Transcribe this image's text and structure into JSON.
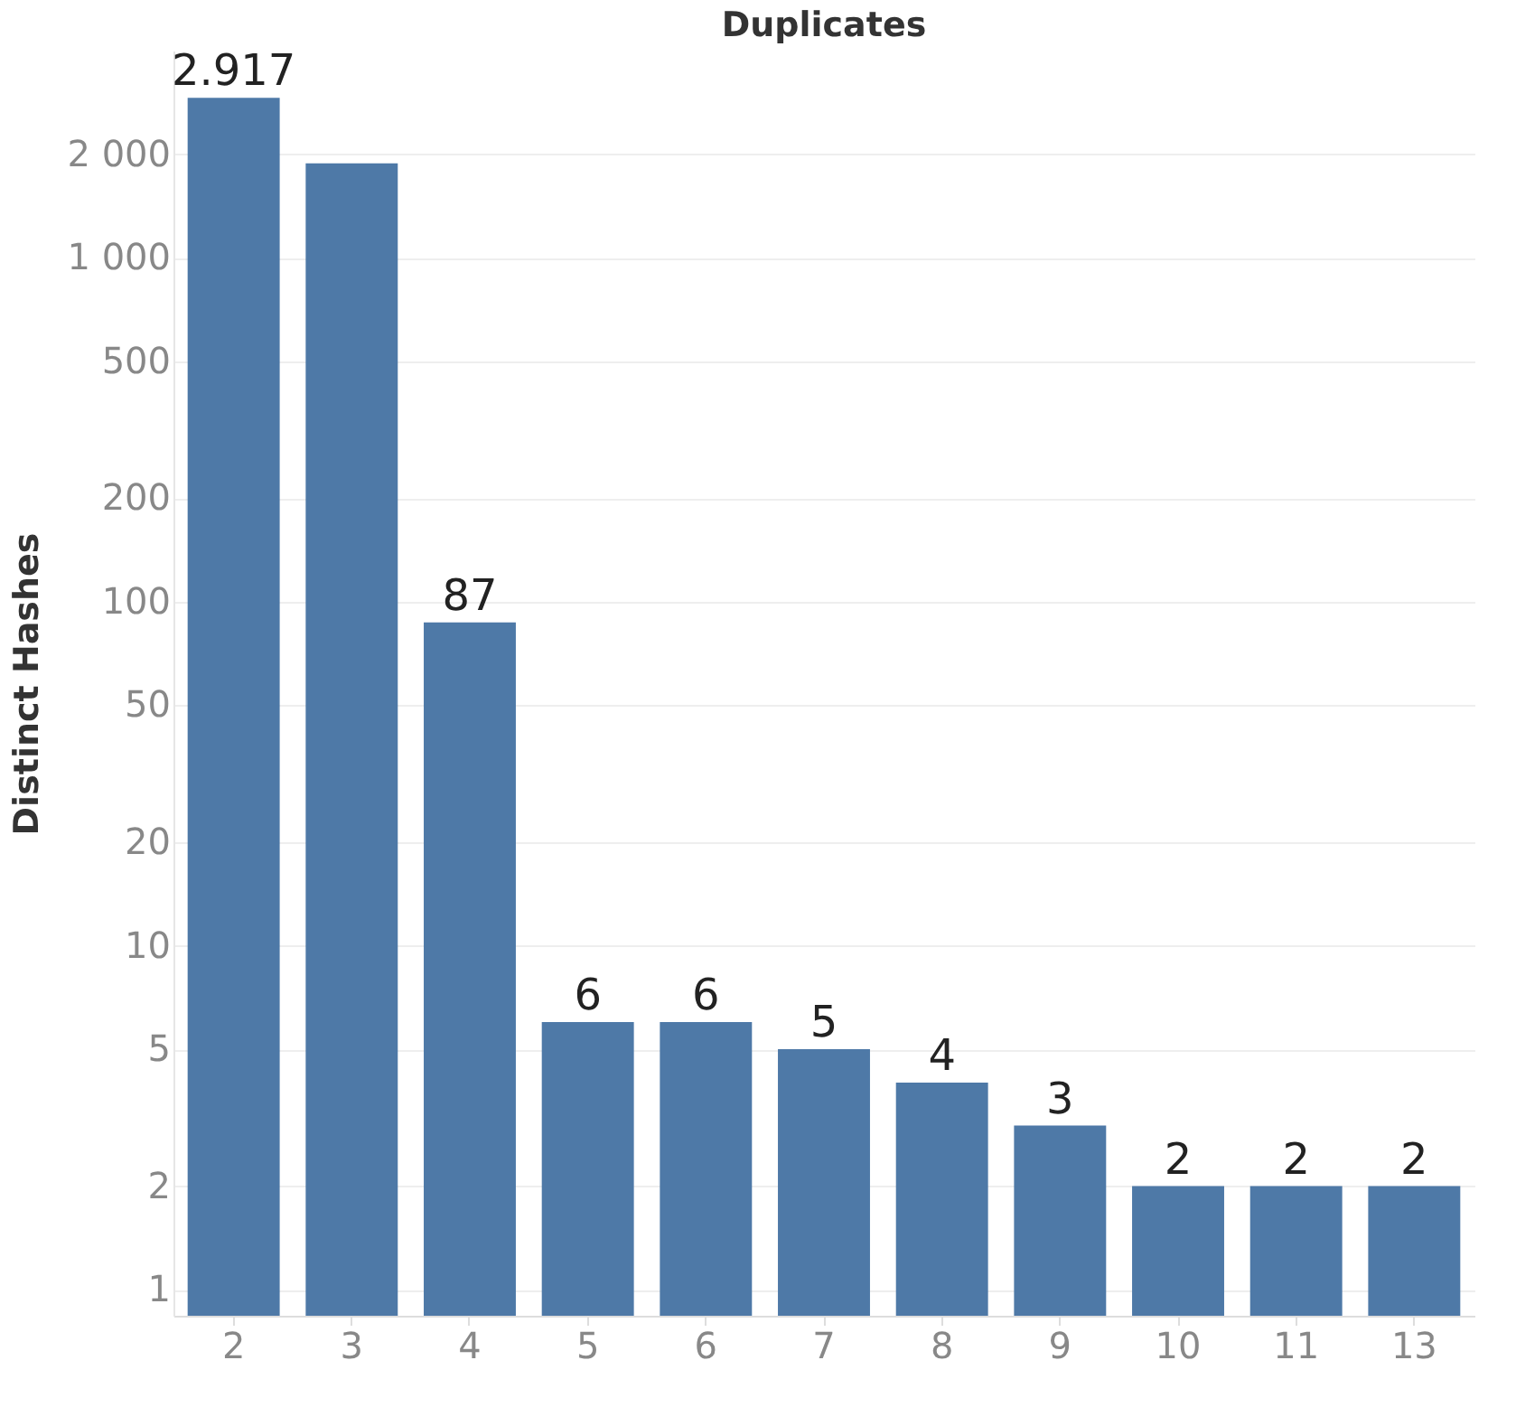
{
  "chart_data": {
    "type": "bar",
    "title": "Duplicates",
    "ylabel": "Distinct Hashes",
    "categories": [
      "2",
      "3",
      "4",
      "5",
      "6",
      "7",
      "8",
      "9",
      "10",
      "11",
      "13"
    ],
    "values": [
      2917,
      1880,
      87,
      6,
      6,
      5,
      4,
      3,
      2,
      2,
      2
    ],
    "value_labels": [
      "2.917",
      null,
      "87",
      "6",
      "6",
      "5",
      "4",
      "3",
      "2",
      "2",
      "2"
    ],
    "color": "#4e79a7",
    "log": true,
    "ylim": [
      0.84,
      4000
    ],
    "yticks": [
      1,
      2,
      5,
      10,
      20,
      50,
      100,
      200,
      500,
      {
        "value": 1000,
        "label": "1 000"
      },
      {
        "value": 2000,
        "label": "2 000"
      }
    ],
    "grid": "y"
  }
}
